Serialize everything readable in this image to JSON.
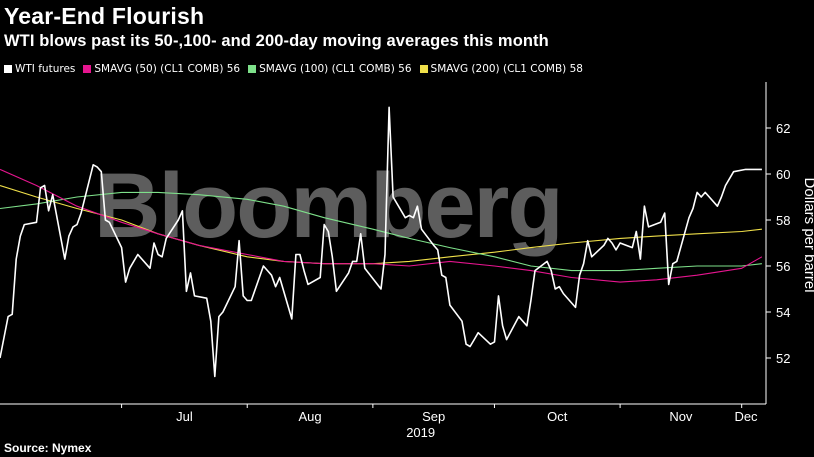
{
  "header": {
    "title": "Year-End Flourish",
    "subtitle": "WTI blows past its 50-,100- and 200-day moving averages this month"
  },
  "legend": [
    {
      "label": "WTI futures",
      "color": "#ffffff"
    },
    {
      "label": "SMAVG (50) (CL1 COMB) 56",
      "color": "#e6158f"
    },
    {
      "label": "SMAVG (100) (CL1 COMB) 56",
      "color": "#7ee08a"
    },
    {
      "label": "SMAVG (200) (CL1 COMB) 58",
      "color": "#f0e04a"
    }
  ],
  "footer": {
    "source": "Source: Nymex",
    "watermark": "Bloomberg"
  },
  "chart_data": {
    "type": "line",
    "title": "Year-End Flourish",
    "subtitle": "WTI blows past its 50-,100- and 200-day moving averages this month",
    "ylabel": "Dollars per barrel",
    "ylim": [
      50,
      64
    ],
    "yticks": [
      52,
      54,
      56,
      58,
      60,
      62
    ],
    "xlabel_year": "2019",
    "x_tick_labels": [
      "Jul",
      "Aug",
      "Sep",
      "Oct",
      "Nov",
      "Dec"
    ],
    "x_tick_dates": [
      "2019-07-01",
      "2019-08-01",
      "2019-09-01",
      "2019-10-01",
      "2019-11-01",
      "2019-12-01"
    ],
    "xlim": [
      "2019-06-01",
      "2019-12-07"
    ],
    "grid": false,
    "legend_position": "top-left",
    "series": [
      {
        "name": "WTI futures",
        "color": "#ffffff",
        "dates": [
          "2019-06-01",
          "2019-06-03",
          "2019-06-04",
          "2019-06-05",
          "2019-06-06",
          "2019-06-07",
          "2019-06-10",
          "2019-06-11",
          "2019-06-12",
          "2019-06-13",
          "2019-06-14",
          "2019-06-17",
          "2019-06-18",
          "2019-06-19",
          "2019-06-20",
          "2019-06-21",
          "2019-06-24",
          "2019-06-25",
          "2019-06-26",
          "2019-06-27",
          "2019-06-28",
          "2019-07-01",
          "2019-07-02",
          "2019-07-03",
          "2019-07-05",
          "2019-07-08",
          "2019-07-09",
          "2019-07-10",
          "2019-07-11",
          "2019-07-12",
          "2019-07-15",
          "2019-07-16",
          "2019-07-17",
          "2019-07-18",
          "2019-07-19",
          "2019-07-22",
          "2019-07-23",
          "2019-07-24",
          "2019-07-25",
          "2019-07-26",
          "2019-07-29",
          "2019-07-30",
          "2019-07-31",
          "2019-08-01",
          "2019-08-02",
          "2019-08-05",
          "2019-08-06",
          "2019-08-07",
          "2019-08-08",
          "2019-08-09",
          "2019-08-12",
          "2019-08-13",
          "2019-08-14",
          "2019-08-15",
          "2019-08-16",
          "2019-08-19",
          "2019-08-20",
          "2019-08-21",
          "2019-08-22",
          "2019-08-23",
          "2019-08-26",
          "2019-08-27",
          "2019-08-28",
          "2019-08-29",
          "2019-08-30",
          "2019-09-03",
          "2019-09-04",
          "2019-09-05",
          "2019-09-06",
          "2019-09-09",
          "2019-09-10",
          "2019-09-11",
          "2019-09-12",
          "2019-09-13",
          "2019-09-16",
          "2019-09-17",
          "2019-09-18",
          "2019-09-19",
          "2019-09-20",
          "2019-09-23",
          "2019-09-24",
          "2019-09-25",
          "2019-09-26",
          "2019-09-27",
          "2019-09-30",
          "2019-10-01",
          "2019-10-02",
          "2019-10-03",
          "2019-10-04",
          "2019-10-07",
          "2019-10-08",
          "2019-10-09",
          "2019-10-10",
          "2019-10-11",
          "2019-10-14",
          "2019-10-15",
          "2019-10-16",
          "2019-10-17",
          "2019-10-18",
          "2019-10-21",
          "2019-10-22",
          "2019-10-23",
          "2019-10-24",
          "2019-10-25",
          "2019-10-28",
          "2019-10-29",
          "2019-10-30",
          "2019-10-31",
          "2019-11-01",
          "2019-11-04",
          "2019-11-05",
          "2019-11-06",
          "2019-11-07",
          "2019-11-08",
          "2019-11-11",
          "2019-11-12",
          "2019-11-13",
          "2019-11-14",
          "2019-11-15",
          "2019-11-18",
          "2019-11-19",
          "2019-11-20",
          "2019-11-21",
          "2019-11-22",
          "2019-11-25",
          "2019-11-26",
          "2019-11-27",
          "2019-11-29",
          "2019-12-02",
          "2019-12-03",
          "2019-12-04",
          "2019-12-05",
          "2019-12-06"
        ],
        "values": [
          52.0,
          53.8,
          53.9,
          56.3,
          57.3,
          57.8,
          57.9,
          59.4,
          59.5,
          58.4,
          59.1,
          56.3,
          57.3,
          57.7,
          57.8,
          58.3,
          60.4,
          60.3,
          60.1,
          58.0,
          57.9,
          56.8,
          55.3,
          55.9,
          56.5,
          55.9,
          57.0,
          56.5,
          56.4,
          57.2,
          58.0,
          58.4,
          54.9,
          55.7,
          54.7,
          54.6,
          53.6,
          51.2,
          53.8,
          54.0,
          55.1,
          57.1,
          54.7,
          54.5,
          54.5,
          56.0,
          55.8,
          55.6,
          55.1,
          55.5,
          53.7,
          56.5,
          56.5,
          55.8,
          55.2,
          55.5,
          57.8,
          57.5,
          56.4,
          54.9,
          55.7,
          56.2,
          56.2,
          57.4,
          55.9,
          55.0,
          56.5,
          62.9,
          59.0,
          58.1,
          58.2,
          58.1,
          58.6,
          57.6,
          56.9,
          56.7,
          55.6,
          55.5,
          54.3,
          53.6,
          52.6,
          52.5,
          52.8,
          53.1,
          52.6,
          52.7,
          54.7,
          53.4,
          52.8,
          53.8,
          53.6,
          53.4,
          54.5,
          55.8,
          56.2,
          55.8,
          55.0,
          55.1,
          54.8,
          54.2,
          55.6,
          56.1,
          57.1,
          56.4,
          56.9,
          57.2,
          57.0,
          56.7,
          57.0,
          56.8,
          57.5,
          56.3,
          58.6,
          57.7,
          57.9,
          58.3,
          55.2,
          56.1,
          56.2,
          58.1,
          58.5,
          59.2,
          59.0,
          59.2,
          58.6,
          59.0,
          59.5,
          60.1,
          60.2,
          60.2,
          60.2,
          60.2,
          60.2
        ],
        "_note": "traced close values"
      },
      {
        "name": "SMAVG (50) (CL1 COMB) 56",
        "color": "#e6158f",
        "dates": [
          "2019-06-01",
          "2019-06-10",
          "2019-06-20",
          "2019-07-01",
          "2019-07-10",
          "2019-07-20",
          "2019-08-01",
          "2019-08-10",
          "2019-08-20",
          "2019-09-01",
          "2019-09-10",
          "2019-09-20",
          "2019-10-01",
          "2019-10-10",
          "2019-10-20",
          "2019-11-01",
          "2019-11-10",
          "2019-11-20",
          "2019-12-01",
          "2019-12-06"
        ],
        "values": [
          60.2,
          59.5,
          58.6,
          57.9,
          57.4,
          56.9,
          56.5,
          56.2,
          56.1,
          56.1,
          56.0,
          56.2,
          56.0,
          55.8,
          55.5,
          55.3,
          55.4,
          55.6,
          55.9,
          56.4
        ]
      },
      {
        "name": "SMAVG (100) (CL1 COMB) 56",
        "color": "#7ee08a",
        "dates": [
          "2019-06-01",
          "2019-06-10",
          "2019-06-20",
          "2019-07-01",
          "2019-07-10",
          "2019-07-20",
          "2019-08-01",
          "2019-08-10",
          "2019-08-20",
          "2019-09-01",
          "2019-09-10",
          "2019-09-20",
          "2019-10-01",
          "2019-10-10",
          "2019-10-20",
          "2019-11-01",
          "2019-11-10",
          "2019-11-20",
          "2019-12-01",
          "2019-12-06"
        ],
        "values": [
          58.5,
          58.7,
          59.0,
          59.2,
          59.2,
          59.1,
          58.9,
          58.6,
          58.1,
          57.6,
          57.2,
          56.8,
          56.4,
          56.0,
          55.8,
          55.8,
          55.9,
          56.0,
          56.0,
          56.1
        ]
      },
      {
        "name": "SMAVG (200) (CL1 COMB) 58",
        "color": "#f0e04a",
        "dates": [
          "2019-06-01",
          "2019-06-10",
          "2019-06-20",
          "2019-07-01",
          "2019-07-10",
          "2019-07-20",
          "2019-08-01",
          "2019-08-10",
          "2019-08-20",
          "2019-09-01",
          "2019-09-10",
          "2019-09-20",
          "2019-10-01",
          "2019-10-10",
          "2019-10-20",
          "2019-11-01",
          "2019-11-10",
          "2019-11-20",
          "2019-12-01",
          "2019-12-06"
        ],
        "values": [
          59.5,
          59.0,
          58.5,
          58.0,
          57.4,
          56.9,
          56.4,
          56.2,
          56.1,
          56.1,
          56.2,
          56.4,
          56.6,
          56.8,
          57.0,
          57.2,
          57.3,
          57.4,
          57.5,
          57.6
        ]
      }
    ]
  }
}
